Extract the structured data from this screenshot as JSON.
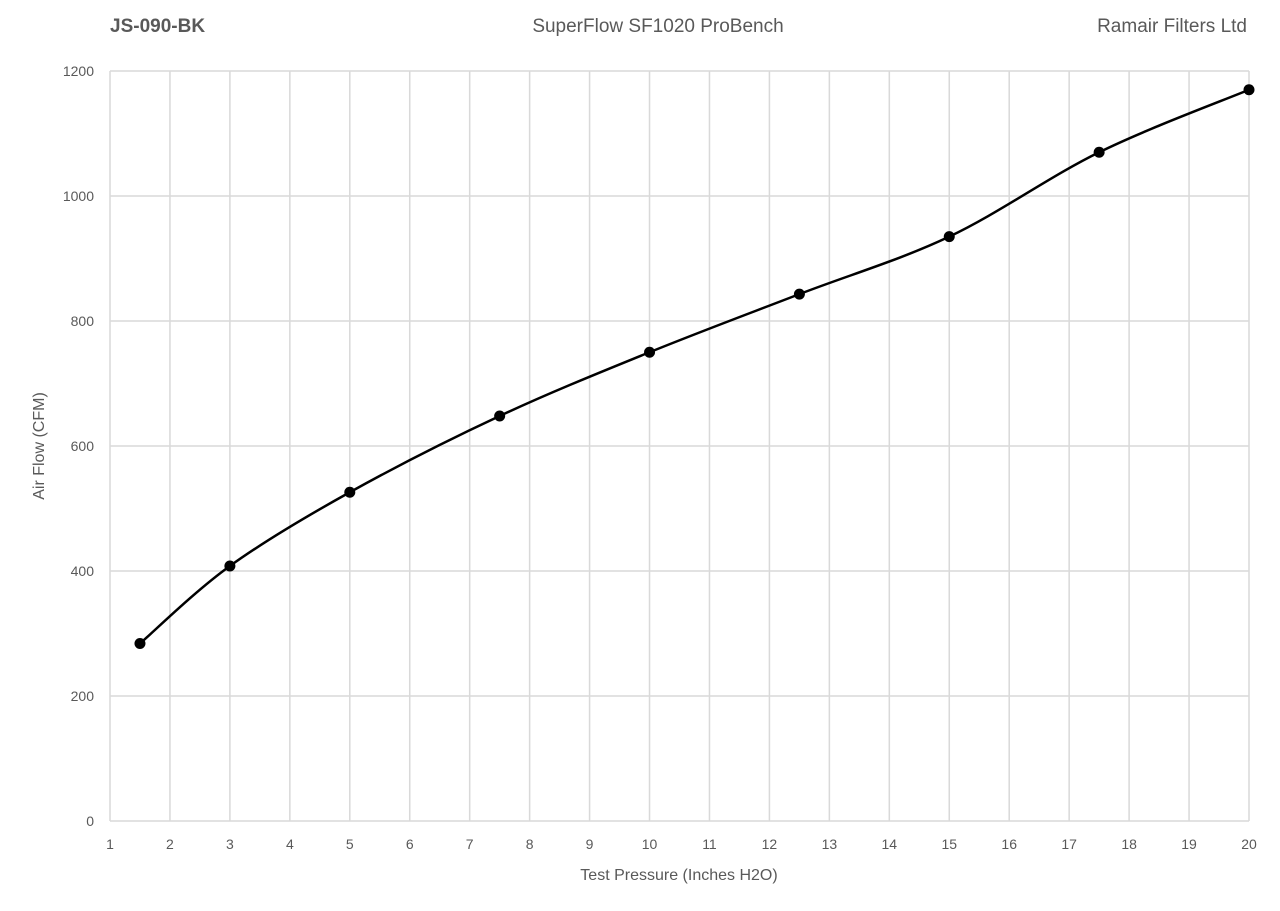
{
  "header": {
    "part_number": "JS-090-BK",
    "test_bench": "SuperFlow SF1020 ProBench",
    "company": "Ramair Filters Ltd"
  },
  "chart_data": {
    "type": "line",
    "title": "",
    "xlabel": "Test Pressure (Inches H2O)",
    "ylabel": "Air Flow (CFM)",
    "xlim": [
      1,
      20
    ],
    "ylim": [
      0,
      1200
    ],
    "xticks": [
      1,
      2,
      3,
      4,
      5,
      6,
      7,
      8,
      9,
      10,
      11,
      12,
      13,
      14,
      15,
      16,
      17,
      18,
      19,
      20
    ],
    "yticks": [
      0,
      200,
      400,
      600,
      800,
      1000,
      1200
    ],
    "grid": true,
    "smoothed": true,
    "markers": true,
    "line_color": "#000000",
    "grid_color": "#d9d9d9",
    "series": [
      {
        "x": [
          1.5,
          3,
          5,
          7.5,
          10,
          12.5,
          15,
          17.5,
          20
        ],
        "y": [
          284,
          408,
          526,
          648,
          750,
          843,
          935,
          1070,
          1170
        ]
      }
    ]
  }
}
